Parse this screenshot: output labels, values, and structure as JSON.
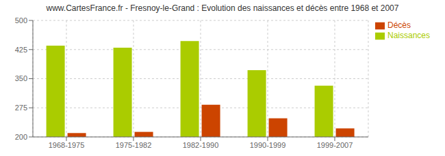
{
  "chart_data": {
    "type": "bar",
    "title": "www.CartesFrance.fr - Fresnoy-le-Grand : Evolution des naissances et décès entre 1968 et 2007",
    "categories": [
      "1968-1975",
      "1975-1982",
      "1982-1990",
      "1990-1999",
      "1999-2007"
    ],
    "series": [
      {
        "name": "Naissances",
        "color": "#aacc00",
        "values": [
          435,
          430,
          447,
          372,
          332
        ]
      },
      {
        "name": "Décès",
        "color": "#cc4400",
        "values": [
          210,
          213,
          283,
          248,
          222
        ]
      }
    ],
    "ylim": [
      200,
      500
    ],
    "yticks": [
      200,
      275,
      350,
      425,
      500
    ],
    "grid": true,
    "legend": "upper right"
  }
}
